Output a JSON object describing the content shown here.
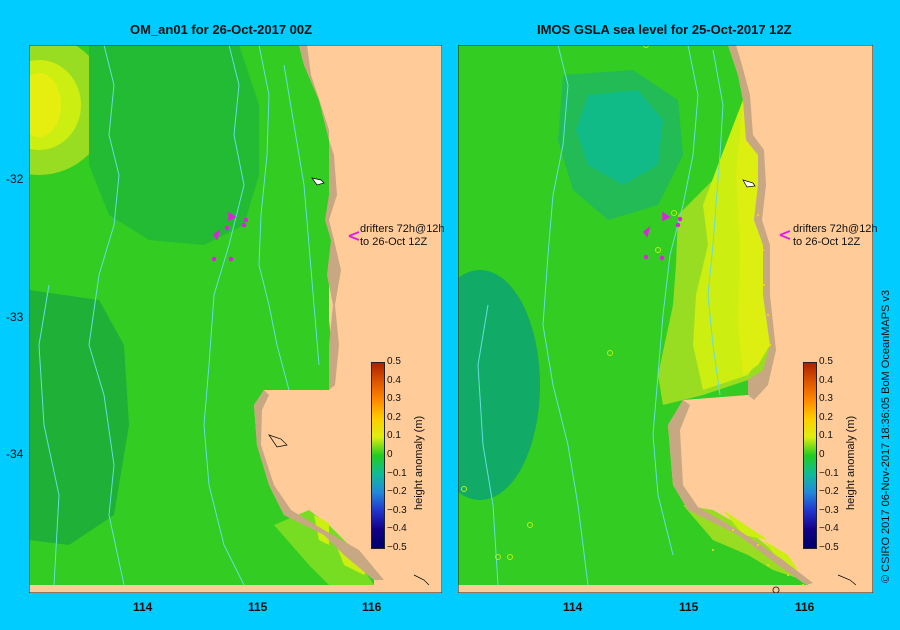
{
  "left_panel": {
    "title": "OM_an01  for 26-Oct-2017 00Z"
  },
  "right_panel": {
    "title": "IMOS GSLA sea level  for 25-Oct-2017 12Z"
  },
  "latitude_labels": [
    "-32",
    "-33",
    "-34"
  ],
  "longitude_labels": [
    "114",
    "115",
    "116"
  ],
  "drifter_annotation": {
    "line1": "drifters 72h@12h",
    "line2": "to 26-Oct 12Z"
  },
  "colorbar": {
    "label": "height anomaly (m)",
    "ticks": [
      "0.5",
      "0.4",
      "0.3",
      "0.2",
      "0.1",
      "0",
      "−0.1",
      "−0.2",
      "−0.3",
      "−0.4",
      "−0.5"
    ],
    "range": [
      -0.5,
      0.5
    ]
  },
  "credit": "© CSIRO 2017   06-Nov-2017 18:36:05 BoM OceanMAPS v3",
  "colors": {
    "background": "#00ccff",
    "land": "#ffcc99",
    "coast": "#c8a882",
    "green_mid": "#22cc22",
    "green_dark": "#11aa33",
    "lime": "#aaee22",
    "yellow": "#ddee11",
    "bathymetry": "#66dddd",
    "drifter": "#dd22dd"
  }
}
